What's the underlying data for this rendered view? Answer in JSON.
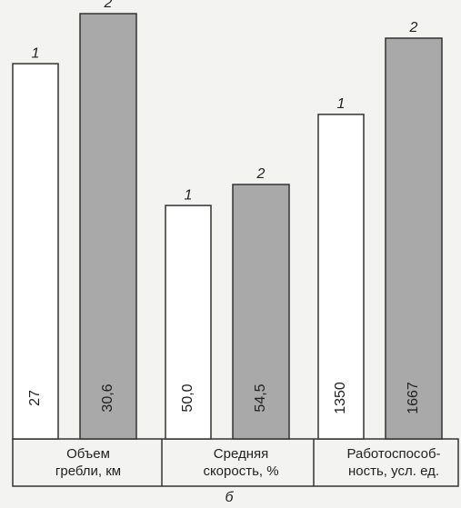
{
  "chart_data": {
    "type": "bar",
    "categories": [
      "Объем\nгребли, км",
      "Средняя\nскорость, %",
      "Работоспособ-\nность, усл. ед."
    ],
    "series": [
      {
        "name": "1",
        "color": "#ffffff",
        "values": [
          27,
          50.0,
          1350
        ],
        "value_labels": [
          "27",
          "50,0",
          "1350"
        ]
      },
      {
        "name": "2",
        "color": "#a9a9a9",
        "values": [
          30.6,
          54.5,
          1667
        ],
        "value_labels": [
          "30,6",
          "54,5",
          "1667"
        ]
      }
    ],
    "caption": "б"
  }
}
